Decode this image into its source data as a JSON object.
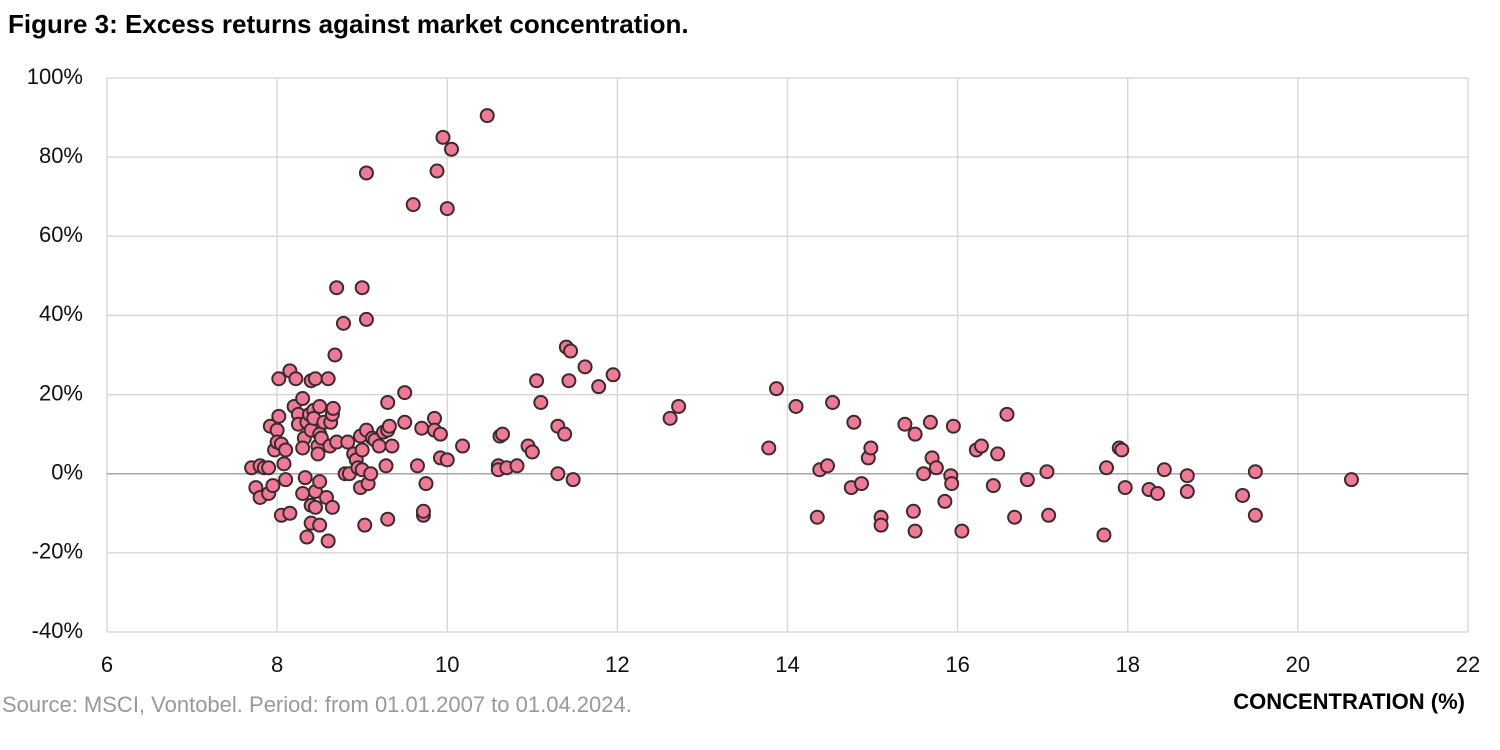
{
  "chart_data": {
    "type": "scatter",
    "title": "Figure 3: Excess returns against market concentration.",
    "source": "Source: MSCI, Vontobel. Period: from 01.01.2007 to 01.04.2024.",
    "x_label": "CONCENTRATION (%)",
    "color": "#f07a95",
    "xlim": [
      6,
      22
    ],
    "xticks": [
      6,
      8,
      10,
      12,
      14,
      16,
      18,
      20,
      22
    ],
    "ylim": [
      -40,
      100
    ],
    "yticks": [
      {
        "value": -40,
        "label": "-40%"
      },
      {
        "value": -20,
        "label": "-20%"
      },
      {
        "value": 0,
        "label": "0%"
      },
      {
        "value": 20,
        "label": "20%"
      },
      {
        "value": 40,
        "label": "40%"
      },
      {
        "value": 60,
        "label": "60%"
      },
      {
        "value": 80,
        "label": "80%"
      },
      {
        "value": 100,
        "label": "100%"
      }
    ],
    "grid": true,
    "x": [
      7.7,
      7.75,
      7.8,
      7.8,
      7.85,
      7.9,
      7.9,
      7.92,
      7.95,
      7.97,
      8.0,
      8.0,
      8.02,
      8.02,
      8.05,
      8.05,
      8.08,
      8.1,
      8.1,
      8.15,
      8.15,
      8.2,
      8.22,
      8.25,
      8.25,
      8.3,
      8.3,
      8.32,
      8.3,
      8.33,
      8.35,
      8.35,
      8.38,
      8.4,
      8.4,
      8.4,
      8.4,
      8.43,
      8.43,
      8.45,
      8.45,
      8.45,
      8.48,
      8.48,
      8.5,
      8.5,
      8.5,
      8.5,
      8.52,
      8.55,
      8.58,
      8.6,
      8.6,
      8.62,
      8.63,
      8.65,
      8.65,
      8.66,
      8.68,
      8.7,
      8.7,
      8.78,
      8.8,
      8.83,
      8.85,
      8.9,
      8.93,
      8.95,
      8.98,
      8.98,
      9.0,
      9.0,
      9.0,
      9.03,
      9.05,
      9.05,
      9.05,
      9.07,
      9.1,
      9.12,
      9.15,
      9.2,
      9.25,
      9.28,
      9.3,
      9.3,
      9.3,
      9.32,
      9.35,
      9.5,
      9.5,
      9.6,
      9.65,
      9.7,
      9.72,
      9.72,
      9.75,
      9.85,
      9.85,
      9.88,
      9.92,
      9.92,
      9.95,
      10.0,
      10.0,
      10.05,
      10.18,
      10.47,
      10.6,
      10.6,
      10.62,
      10.65,
      10.7,
      10.82,
      10.95,
      11.0,
      11.05,
      11.1,
      11.3,
      11.3,
      11.38,
      11.4,
      11.45,
      11.43,
      11.48,
      11.62,
      11.78,
      11.95,
      12.62,
      12.72,
      13.78,
      13.87,
      14.1,
      14.35,
      14.38,
      14.47,
      14.53,
      14.75,
      14.78,
      14.87,
      14.95,
      14.98,
      15.1,
      15.1,
      15.38,
      15.48,
      15.5,
      15.5,
      15.6,
      15.68,
      15.7,
      15.75,
      15.85,
      15.92,
      15.93,
      15.95,
      16.05,
      16.22,
      16.28,
      16.42,
      16.47,
      16.58,
      16.67,
      16.82,
      17.05,
      17.07,
      17.72,
      17.75,
      17.9,
      17.93,
      17.97,
      18.25,
      18.35,
      18.43,
      18.7,
      18.7,
      19.35,
      19.5,
      19.5,
      20.63
    ],
    "values": [
      1.5,
      -3.5,
      -6,
      2,
      1.5,
      -5,
      1.5,
      12,
      -3,
      6,
      11,
      8,
      14.5,
      24,
      7.5,
      -10.5,
      2.5,
      6,
      -1.5,
      26,
      -10,
      17,
      24,
      15,
      12.5,
      19,
      -5,
      9,
      6.5,
      -1,
      -16,
      13,
      15,
      11,
      23.5,
      -8,
      -12.5,
      16,
      14,
      24,
      -8.5,
      -4.5,
      7,
      5,
      10,
      -2,
      17,
      -13,
      9,
      13,
      -6,
      -17,
      24,
      7,
      13,
      15,
      -8.5,
      16.5,
      30,
      47,
      8,
      38,
      0,
      8,
      0,
      5,
      3.5,
      1.5,
      -3.5,
      9.5,
      47,
      6,
      1,
      -13,
      76,
      39,
      11,
      -2.5,
      0,
      9,
      8.5,
      7,
      10.5,
      2,
      18,
      -11.5,
      11,
      12,
      7,
      13,
      20.5,
      68,
      2,
      11.5,
      -10.5,
      -9.5,
      -2.5,
      14,
      11,
      76.5,
      10,
      4,
      85,
      3.5,
      67,
      82,
      7,
      90.5,
      2,
      1,
      9.5,
      10,
      1.5,
      2,
      7,
      5.5,
      23.5,
      18,
      12,
      0,
      10,
      32,
      31,
      23.5,
      -1.5,
      27,
      22,
      25,
      14,
      17,
      6.5,
      21.5,
      17,
      -11,
      1,
      2,
      18,
      -3.5,
      13,
      -2.5,
      4,
      6.5,
      -11,
      -13,
      12.5,
      -9.5,
      -14.5,
      10,
      0,
      13,
      4,
      1.5,
      -7,
      -0.5,
      -2.5,
      12,
      -14.5,
      6,
      7,
      -3,
      5,
      15,
      -11,
      -1.5,
      0.5,
      -10.5,
      -15.5,
      1.5,
      6.5,
      6,
      -3.5,
      -4,
      -5,
      1,
      -4.5,
      -0.5,
      -5.5,
      0.5,
      -10.5,
      -1.5
    ]
  }
}
